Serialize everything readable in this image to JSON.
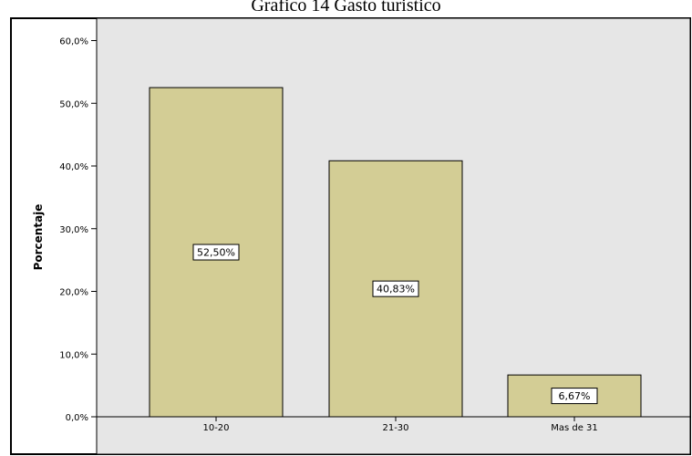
{
  "chart_data": {
    "type": "bar",
    "title": "Grafico 14 Gasto turistico",
    "xlabel": "",
    "ylabel": "Porcentaje",
    "categories": [
      "10-20",
      "21-30",
      "Mas de 31"
    ],
    "values": [
      52.5,
      40.83,
      6.67
    ],
    "data_labels": [
      "52,50%",
      "40,83%",
      "6,67%"
    ],
    "ylim": [
      0,
      66
    ],
    "yticks": [
      0,
      10,
      20,
      30,
      40,
      50,
      60
    ],
    "ytick_labels": [
      "0,0%",
      "10,0%",
      "20,0%",
      "30,0%",
      "40,0%",
      "50,0%",
      "60,0%"
    ],
    "grid": false,
    "colors": {
      "plot_background": "#e6e6e6",
      "bar_fill": "#d3cd95",
      "bar_stroke": "#000000"
    }
  }
}
